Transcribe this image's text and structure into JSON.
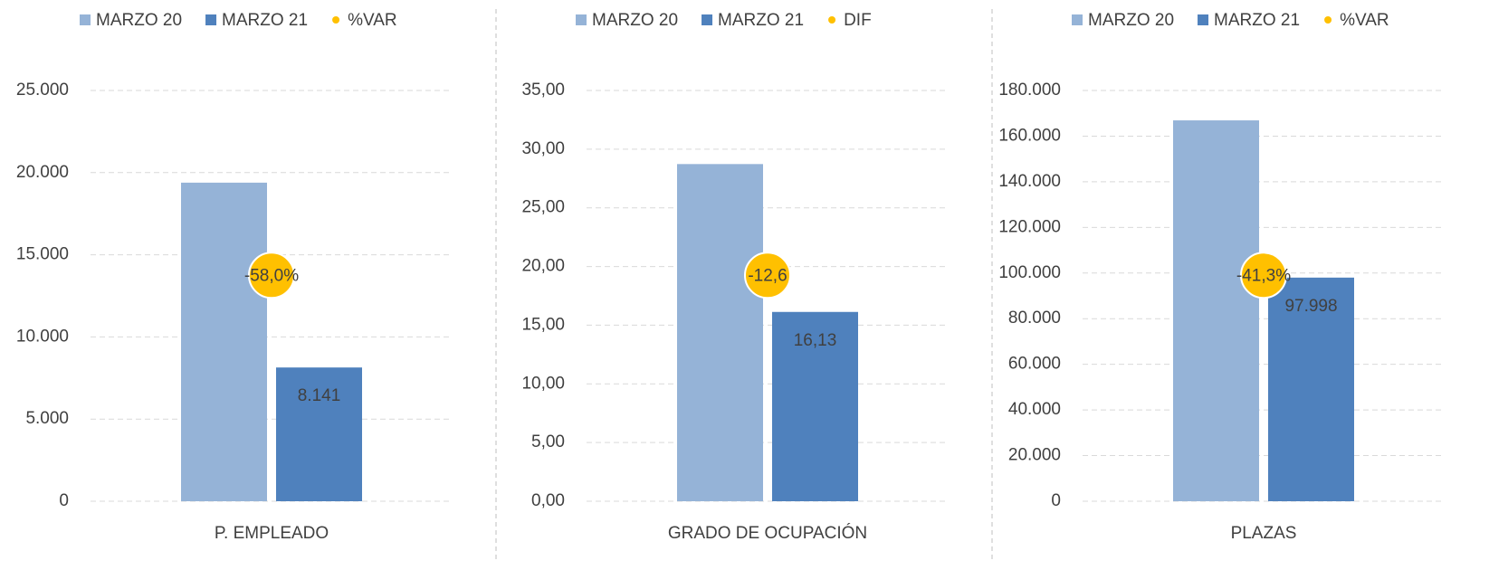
{
  "chart_data": [
    {
      "type": "bar",
      "categories": [
        "P. EMPLEADO"
      ],
      "ylim": [
        0,
        25000
      ],
      "yticks": [
        0,
        {
          "value": 5000,
          "label": "5.000"
        },
        {
          "value": 10000,
          "label": "10.000"
        },
        {
          "value": 15000,
          "label": "15.000"
        },
        {
          "value": 20000,
          "label": "20.000"
        },
        {
          "value": 25000,
          "label": "25.000"
        }
      ],
      "grid": true,
      "series": [
        {
          "name": "MARZO 20",
          "color": "#95b3d7",
          "values": [
            19390
          ]
        },
        {
          "name": "MARZO 21",
          "color": "#4f81bd",
          "values": [
            8141
          ],
          "value_labels": [
            "8.141"
          ]
        },
        {
          "name": "%VAR",
          "color": "#ffc000",
          "values": [
            -58.0
          ],
          "value_labels": [
            "-58,0%"
          ],
          "axis": "y2"
        }
      ]
    },
    {
      "type": "bar",
      "categories": [
        "GRADO DE OCUPACIÓN"
      ],
      "ylim": [
        0,
        35
      ],
      "yticks": [
        {
          "value": 0,
          "label": "0,00"
        },
        {
          "value": 5,
          "label": "5,00"
        },
        {
          "value": 10,
          "label": "10,00"
        },
        {
          "value": 15,
          "label": "15,00"
        },
        {
          "value": 20,
          "label": "20,00"
        },
        {
          "value": 25,
          "label": "25,00"
        },
        {
          "value": 30,
          "label": "30,00"
        },
        {
          "value": 35,
          "label": "35,00"
        }
      ],
      "grid": true,
      "series": [
        {
          "name": "MARZO 20",
          "color": "#95b3d7",
          "values": [
            28.73
          ]
        },
        {
          "name": "MARZO 21",
          "color": "#4f81bd",
          "values": [
            16.13
          ],
          "value_labels": [
            "16,13"
          ]
        },
        {
          "name": "DIF",
          "color": "#ffc000",
          "values": [
            -12.6
          ],
          "value_labels": [
            "-12,6"
          ],
          "axis": "y2"
        }
      ]
    },
    {
      "type": "bar",
      "categories": [
        "PLAZAS"
      ],
      "ylim": [
        0,
        180000
      ],
      "yticks": [
        0,
        {
          "value": 20000,
          "label": "20.000"
        },
        {
          "value": 40000,
          "label": "40.000"
        },
        {
          "value": 60000,
          "label": "60.000"
        },
        {
          "value": 80000,
          "label": "80.000"
        },
        {
          "value": 100000,
          "label": "100.000"
        },
        {
          "value": 120000,
          "label": "120.000"
        },
        {
          "value": 140000,
          "label": "140.000"
        },
        {
          "value": 160000,
          "label": "160.000"
        },
        {
          "value": 180000,
          "label": "180.000"
        }
      ],
      "grid": true,
      "series": [
        {
          "name": "MARZO 20",
          "color": "#95b3d7",
          "values": [
            166900
          ]
        },
        {
          "name": "MARZO 21",
          "color": "#4f81bd",
          "values": [
            97998
          ],
          "value_labels": [
            "97.998"
          ]
        },
        {
          "name": "%VAR",
          "color": "#ffc000",
          "values": [
            -41.3
          ],
          "value_labels": [
            "-41,3%"
          ],
          "axis": "y2"
        }
      ]
    }
  ]
}
